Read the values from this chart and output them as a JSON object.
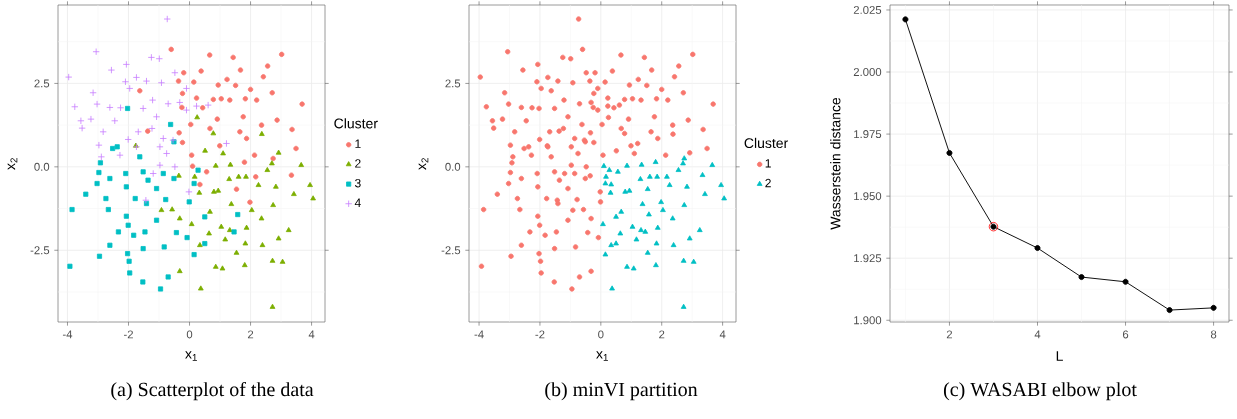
{
  "chart_data": [
    {
      "type": "scatter",
      "title": "(a) Scatterplot of the data",
      "xlabel": "x$_{1}$",
      "ylabel": "x$_{2}$",
      "legend_title": "Cluster",
      "legend": "right",
      "grid": true,
      "xlim": [
        -4.31,
        4.44
      ],
      "ylim": [
        -4.65,
        4.85
      ],
      "xticks": [
        -4,
        {
          "value": -3,
          "label": null
        },
        -2,
        {
          "value": -1,
          "label": null
        },
        0,
        {
          "value": 1,
          "label": null
        },
        2,
        {
          "value": 3,
          "label": null
        },
        4
      ],
      "yticks": [
        {
          "value": -3.75,
          "label": null
        },
        {
          "value": -2.5,
          "label": "-2.5"
        },
        {
          "value": -1.25,
          "label": null
        },
        {
          "value": 0,
          "label": "0.0"
        },
        {
          "value": 1.25,
          "label": null
        },
        {
          "value": 2.5,
          "label": "2.5"
        },
        {
          "value": 3.75,
          "label": null
        }
      ],
      "series": [
        {
          "name": "1",
          "color": "#f8766d",
          "marker": "circle",
          "x": [
            -0.6,
            0.66,
            3.02,
            1.43,
            2.56,
            0.38,
            1.67,
            -0.19,
            0.14,
            -0.36,
            0.94,
            1.23,
            2.42,
            2.0,
            2.71,
            1.51,
            0.78,
            1.04,
            0.23,
            -0.23,
            -1.63,
            3.69,
            2.2,
            1.83,
            1.32,
            0.43,
            -0.25,
            1.76,
            0.91,
            2.87,
            3.36,
            2.36,
            1.65,
            0.67,
            0.04,
            -0.34,
            -1.37,
            0.99,
            1.87,
            2.13,
            2.74,
            3.49,
            3.34,
            2.17,
            1.8,
            0.56,
            0.07,
            -0.23,
            0.1,
            1.54,
            1.98,
            0.34
          ],
          "values": [
            3.52,
            3.35,
            3.37,
            3.28,
            3.02,
            2.87,
            2.9,
            2.82,
            2.54,
            2.57,
            2.45,
            2.62,
            2.7,
            2.32,
            2.22,
            2.44,
            2.02,
            2.04,
            2.06,
            2.2,
            2.28,
            1.88,
            2.0,
            2.04,
            2.0,
            1.77,
            1.78,
            1.5,
            1.43,
            1.4,
            1.12,
            1.25,
            1.05,
            1.15,
            1.27,
            1.02,
            1.07,
            0.63,
            0.85,
            0.35,
            0.25,
            0.55,
            -0.25,
            -0.3,
            0.14,
            -0.15,
            0.35,
            0.73,
            0.02,
            -0.67,
            -1.06,
            -0.53
          ]
        },
        {
          "name": "2",
          "color": "#7cae00",
          "marker": "triangle",
          "x": [
            0.25,
            0.78,
            2.37,
            2.92,
            3.66,
            2.7,
            0.51,
            1.1,
            0.86,
            1.34,
            -1.76,
            -0.35,
            0.17,
            0.32,
            0.8,
            0.94,
            1.3,
            1.61,
            1.85,
            2.26,
            2.55,
            2.83,
            3.42,
            3.95,
            4.05,
            0.67,
            1.37,
            2.04,
            2.74,
            2.36,
            3.25,
            1.87,
            1.32,
            1.04,
            0.64,
            0.07,
            -0.32,
            -0.57,
            -0.92,
            0.34,
            1.17,
            1.83,
            2.39,
            2.92,
            1.54,
            0.86,
            1.08,
            1.81,
            2.72,
            3.05,
            -0.32,
            0.37,
            2.72
          ],
          "values": [
            1.48,
            1.0,
            0.98,
            0.42,
            0.05,
            0.1,
            0.48,
            0.4,
            0.03,
            0.06,
            0.63,
            -0.27,
            -0.3,
            -0.78,
            -0.75,
            -0.72,
            -0.37,
            -0.3,
            -0.3,
            -0.55,
            -0.1,
            -0.6,
            -0.82,
            -0.55,
            -0.95,
            -1.35,
            -1.12,
            -1.3,
            -1.15,
            -1.55,
            -1.9,
            -1.83,
            -1.9,
            -1.8,
            -2.0,
            -1.72,
            -1.55,
            -1.28,
            -1.3,
            -2.35,
            -2.18,
            -2.3,
            -2.35,
            -2.15,
            -2.58,
            -3.0,
            -3.05,
            -2.95,
            -2.82,
            -2.85,
            -3.13,
            -3.65,
            -4.2
          ]
        },
        {
          "name": "3",
          "color": "#00bfc4",
          "marker": "square",
          "x": [
            -2.03,
            -0.62,
            -0.51,
            -2.37,
            -2.52,
            -1.63,
            -2.92,
            -2.97,
            -3.03,
            -2.61,
            -2.09,
            -1.52,
            -1.36,
            -0.86,
            -0.51,
            -1.08,
            -2.07,
            -1.78,
            -2.74,
            -3.4,
            -3.85,
            -2.66,
            -2.07,
            -1.41,
            -0.78,
            -0.01,
            0.15,
            -1.08,
            -2.01,
            -2.33,
            -2.61,
            -1.83,
            -1.46,
            -0.43,
            -0.08,
            -0.83,
            -1.52,
            -2.03,
            -2.95,
            -1.98,
            -1.96,
            -1.53,
            -0.95,
            -0.7,
            0.15,
            0.5,
            0.5,
            1.46,
            1.58,
            -3.92,
            0.28
          ],
          "values": [
            1.75,
            1.27,
            0.75,
            0.6,
            0.55,
            0.3,
            0.12,
            -0.17,
            -0.5,
            -0.35,
            -0.2,
            -0.15,
            -0.4,
            -0.2,
            -0.35,
            -0.65,
            -0.6,
            -0.95,
            -0.95,
            -0.82,
            -1.28,
            -1.28,
            -1.48,
            -1.1,
            -0.98,
            -1.05,
            -0.5,
            -1.6,
            -1.75,
            -1.95,
            -2.35,
            -2.05,
            -1.95,
            -1.97,
            -2.12,
            -2.4,
            -2.45,
            -2.6,
            -2.68,
            -2.83,
            -3.18,
            -3.45,
            -3.66,
            -3.3,
            -2.63,
            -1.5,
            -2.3,
            -1.95,
            -1.43,
            -2.98,
            -0.1
          ]
        },
        {
          "name": "4",
          "color": "#c77cff",
          "marker": "cross",
          "x": [
            -0.73,
            -3.06,
            -1.25,
            -0.99,
            -2.07,
            -2.56,
            -1.74,
            -1.41,
            -0.48,
            -0.1,
            -3.96,
            -3.16,
            -2.1,
            -1.96,
            -0.92,
            -3.76,
            -3.56,
            -3.52,
            -3.23,
            -3.03,
            -2.61,
            -2.26,
            -2.45,
            -2.83,
            -2.97,
            -2.01,
            -1.68,
            -1.08,
            -0.7,
            -0.32,
            -0.1,
            0.23,
            -1.21,
            -1.52,
            -1.23,
            -0.86,
            -0.97,
            -0.75,
            -1.74,
            -2.28,
            -2.89,
            -0.97,
            -0.48,
            -1.19,
            -1.43,
            -0.02,
            1.21,
            0.61,
            -0.54
          ],
          "values": [
            4.43,
            3.45,
            3.28,
            3.24,
            3.07,
            2.9,
            2.68,
            2.57,
            2.82,
            2.35,
            2.69,
            2.22,
            2.55,
            2.35,
            2.52,
            1.8,
            1.38,
            1.16,
            1.43,
            1.88,
            1.78,
            1.77,
            1.38,
            1.05,
            0.65,
            0.82,
            1.05,
            1.5,
            1.89,
            1.93,
            1.7,
            1.82,
            2.0,
            1.75,
            1.15,
            0.85,
            0.6,
            0.4,
            0.6,
            0.35,
            0.3,
            0.05,
            0.0,
            -0.2,
            -1.0,
            -0.75,
            0.7,
            1.85,
            0.8
          ]
        }
      ]
    },
    {
      "type": "scatter",
      "title": "(b) minVI partition",
      "xlabel": "x$_{1}$",
      "ylabel": "x$_{2}$",
      "legend_title": "Cluster",
      "legend": "right",
      "grid": true,
      "xlim": [
        -4.33,
        4.44
      ],
      "ylim": [
        -4.65,
        4.85
      ],
      "xticks": [
        -4,
        {
          "value": -3,
          "label": null
        },
        -2,
        {
          "value": -1,
          "label": null
        },
        0,
        {
          "value": 1,
          "label": null
        },
        2,
        {
          "value": 3,
          "label": null
        },
        4
      ],
      "yticks": [
        {
          "value": -3.75,
          "label": null
        },
        {
          "value": -2.5,
          "label": "-2.5"
        },
        {
          "value": -1.25,
          "label": null
        },
        {
          "value": 0,
          "label": "0.0"
        },
        {
          "value": 1.25,
          "label": null
        },
        {
          "value": 2.5,
          "label": "2.5"
        },
        {
          "value": 3.75,
          "label": null
        }
      ],
      "series": [
        {
          "name": "1",
          "color": "#f8766d",
          "marker": "circle",
          "x": [
            -0.6,
            0.66,
            3.02,
            1.43,
            2.56,
            0.38,
            1.67,
            -0.19,
            0.14,
            -0.36,
            0.94,
            1.23,
            2.42,
            2.0,
            2.71,
            1.51,
            0.78,
            1.04,
            0.23,
            -0.23,
            -1.63,
            3.69,
            2.2,
            1.83,
            1.32,
            0.43,
            -0.25,
            1.76,
            0.91,
            2.87,
            3.36,
            2.36,
            1.65,
            0.67,
            0.04,
            -0.34,
            -1.37,
            0.99,
            1.87,
            2.13,
            3.49,
            0.07,
            -0.23,
            0.25,
            0.78,
            2.37,
            2.92,
            0.51,
            1.1,
            -1.76,
            -0.35,
            -0.32,
            -0.57,
            -0.92,
            -0.32,
            -2.03,
            -0.62,
            -0.51,
            -2.37,
            -2.52,
            -1.63,
            -2.92,
            -2.97,
            -3.03,
            -2.61,
            -2.09,
            -1.52,
            -1.36,
            -0.86,
            -0.51,
            -1.08,
            -2.07,
            -1.78,
            -2.74,
            -3.4,
            -3.85,
            -2.66,
            -2.07,
            -1.41,
            -0.78,
            -0.01,
            -1.08,
            -2.01,
            -2.33,
            -2.61,
            -1.83,
            -1.46,
            -0.43,
            -0.08,
            -0.83,
            -1.52,
            -2.03,
            -2.95,
            -1.98,
            -1.96,
            -1.53,
            -0.95,
            -0.7,
            -3.92,
            -0.73,
            -3.06,
            -1.25,
            -0.99,
            -2.07,
            -2.56,
            -1.74,
            -1.41,
            -0.48,
            -0.1,
            -3.96,
            -3.16,
            -2.1,
            -1.96,
            -0.92,
            -3.76,
            -3.56,
            -3.52,
            -3.23,
            -3.03,
            -2.61,
            -2.26,
            -2.45,
            -2.83,
            -2.97,
            -2.01,
            -1.68,
            -1.08,
            -0.7,
            -0.32,
            -0.1,
            0.23,
            -1.21,
            -1.52,
            -1.23,
            -0.86,
            -0.97,
            -0.75,
            -1.74,
            -2.28,
            -2.89,
            -0.97,
            -0.48,
            -1.19,
            -1.43,
            -0.02,
            1.21,
            0.61,
            -0.54
          ],
          "values": [
            3.52,
            3.35,
            3.37,
            3.28,
            3.02,
            2.87,
            2.9,
            2.82,
            2.54,
            2.57,
            2.45,
            2.62,
            2.7,
            2.32,
            2.22,
            2.44,
            2.02,
            2.04,
            2.06,
            2.2,
            2.28,
            1.88,
            2.0,
            2.04,
            2.0,
            1.77,
            1.78,
            1.5,
            1.43,
            1.4,
            1.12,
            1.25,
            1.05,
            1.15,
            1.27,
            1.02,
            1.07,
            0.63,
            0.85,
            0.35,
            0.55,
            0.35,
            0.73,
            1.48,
            1.0,
            0.98,
            0.42,
            0.48,
            0.4,
            0.63,
            -0.27,
            -1.55,
            -1.28,
            -1.3,
            -3.13,
            1.75,
            1.27,
            0.75,
            0.6,
            0.55,
            0.3,
            0.12,
            -0.17,
            -0.5,
            -0.35,
            -0.2,
            -0.15,
            -0.4,
            -0.2,
            -0.35,
            -0.65,
            -0.6,
            -0.95,
            -0.95,
            -0.82,
            -1.28,
            -1.28,
            -1.48,
            -1.1,
            -0.98,
            -1.05,
            -1.6,
            -1.75,
            -1.95,
            -2.35,
            -2.05,
            -1.95,
            -1.97,
            -2.12,
            -2.4,
            -2.45,
            -2.6,
            -2.68,
            -2.83,
            -3.18,
            -3.45,
            -3.66,
            -3.3,
            -2.98,
            4.43,
            3.45,
            3.28,
            3.24,
            3.07,
            2.9,
            2.68,
            2.57,
            2.82,
            2.35,
            2.69,
            2.22,
            2.55,
            2.35,
            2.52,
            1.8,
            1.38,
            1.16,
            1.43,
            1.88,
            1.78,
            1.77,
            1.38,
            1.05,
            0.65,
            0.82,
            1.05,
            1.5,
            1.89,
            1.93,
            1.7,
            1.82,
            2.0,
            1.75,
            1.15,
            0.85,
            0.6,
            0.4,
            0.6,
            0.35,
            0.3,
            0.05,
            0.0,
            -0.2,
            -1.0,
            -0.75,
            0.7,
            1.85,
            0.8
          ]
        },
        {
          "name": "2",
          "color": "#00bfc4",
          "marker": "triangle",
          "x": [
            2.74,
            3.34,
            2.17,
            1.8,
            0.56,
            0.1,
            1.54,
            1.98,
            0.34,
            3.66,
            2.7,
            0.86,
            1.34,
            0.17,
            0.32,
            0.8,
            0.94,
            1.3,
            1.61,
            1.85,
            2.26,
            2.55,
            2.83,
            3.42,
            3.95,
            4.05,
            0.67,
            1.37,
            2.04,
            2.74,
            2.36,
            3.25,
            1.87,
            1.32,
            1.04,
            0.64,
            0.07,
            0.34,
            1.17,
            1.83,
            2.39,
            2.92,
            1.54,
            0.86,
            1.08,
            1.81,
            2.72,
            3.05,
            0.37,
            2.72,
            0.15,
            0.15,
            0.5,
            0.5,
            1.46,
            1.58,
            0.28
          ],
          "values": [
            0.25,
            -0.25,
            -0.3,
            0.14,
            -0.15,
            0.02,
            -0.67,
            -1.06,
            -0.53,
            0.05,
            0.1,
            0.03,
            0.06,
            -0.3,
            -0.78,
            -0.75,
            -0.72,
            -0.37,
            -0.3,
            -0.3,
            -0.55,
            -0.1,
            -0.6,
            -0.82,
            -0.55,
            -0.95,
            -1.35,
            -1.12,
            -1.3,
            -1.15,
            -1.55,
            -1.9,
            -1.83,
            -1.9,
            -1.8,
            -2.0,
            -1.72,
            -2.35,
            -2.18,
            -2.3,
            -2.35,
            -2.15,
            -2.58,
            -3.0,
            -3.05,
            -2.95,
            -2.82,
            -2.85,
            -3.65,
            -4.2,
            -0.5,
            -2.63,
            -1.5,
            -2.3,
            -1.95,
            -1.43,
            -0.1
          ]
        }
      ]
    },
    {
      "type": "line",
      "title": "(c) WASABI elbow plot",
      "xlabel": "L",
      "ylabel": "Wasserstein distance",
      "grid": true,
      "xlim": [
        0.65,
        8.35
      ],
      "ylim": [
        1.8993,
        2.027
      ],
      "xticks": [
        {
          "value": 1,
          "label": null
        },
        2,
        {
          "value": 3,
          "label": null
        },
        4,
        {
          "value": 5,
          "label": null
        },
        6,
        {
          "value": 7,
          "label": null
        },
        8
      ],
      "yticks": [
        {
          "value": 1.9,
          "label": "1.900"
        },
        {
          "value": 1.9125,
          "label": null
        },
        1.925,
        {
          "value": 1.9375,
          "label": null
        },
        {
          "value": 1.95,
          "label": "1.950"
        },
        {
          "value": 1.9625,
          "label": null
        },
        1.975,
        {
          "value": 1.9875,
          "label": null
        },
        {
          "value": 2,
          "label": "2.000"
        },
        {
          "value": 2.0125,
          "label": null
        },
        2.025
      ],
      "series": [
        {
          "type": "scatter",
          "color": "#ff0000",
          "marker": "circle",
          "x": [
            3
          ],
          "values": [
            1.9377
          ]
        },
        {
          "type": "line",
          "color": "#000000",
          "marker": "circle",
          "line_style": "solid",
          "x": [
            1,
            2,
            3,
            4,
            5,
            6,
            7,
            8
          ],
          "values": [
            2.0212,
            1.9674,
            1.9377,
            1.9291,
            1.9174,
            1.9155,
            1.9041,
            1.905
          ]
        }
      ]
    }
  ]
}
